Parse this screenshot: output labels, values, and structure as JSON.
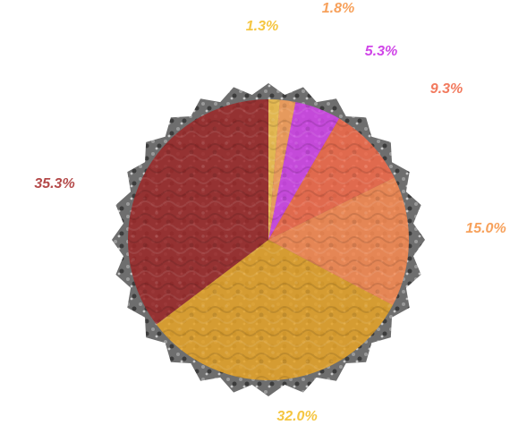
{
  "chart_data": {
    "type": "pie",
    "title": "",
    "start_angle_deg": 90,
    "direction": "clockwise",
    "slices": [
      {
        "label": "1.3%",
        "value": 1.3,
        "color": "#f2c14e"
      },
      {
        "label": "1.8%",
        "value": 1.8,
        "color": "#f7a15b"
      },
      {
        "label": "5.3%",
        "value": 5.3,
        "color": "#d045e8"
      },
      {
        "label": "9.3%",
        "value": 9.3,
        "color": "#f06a4a"
      },
      {
        "label": "15.0%",
        "value": 15.0,
        "color": "#f68a52"
      },
      {
        "label": "32.0%",
        "value": 32.0,
        "color": "#e4a32a"
      },
      {
        "label": "35.3%",
        "value": 35.3,
        "color": "#9b2a2a"
      }
    ],
    "label_colors": [
      "#f5c642",
      "#f7a15b",
      "#d045e8",
      "#f27a5e",
      "#f7a15b",
      "#f5c642",
      "#b44a4a"
    ]
  }
}
